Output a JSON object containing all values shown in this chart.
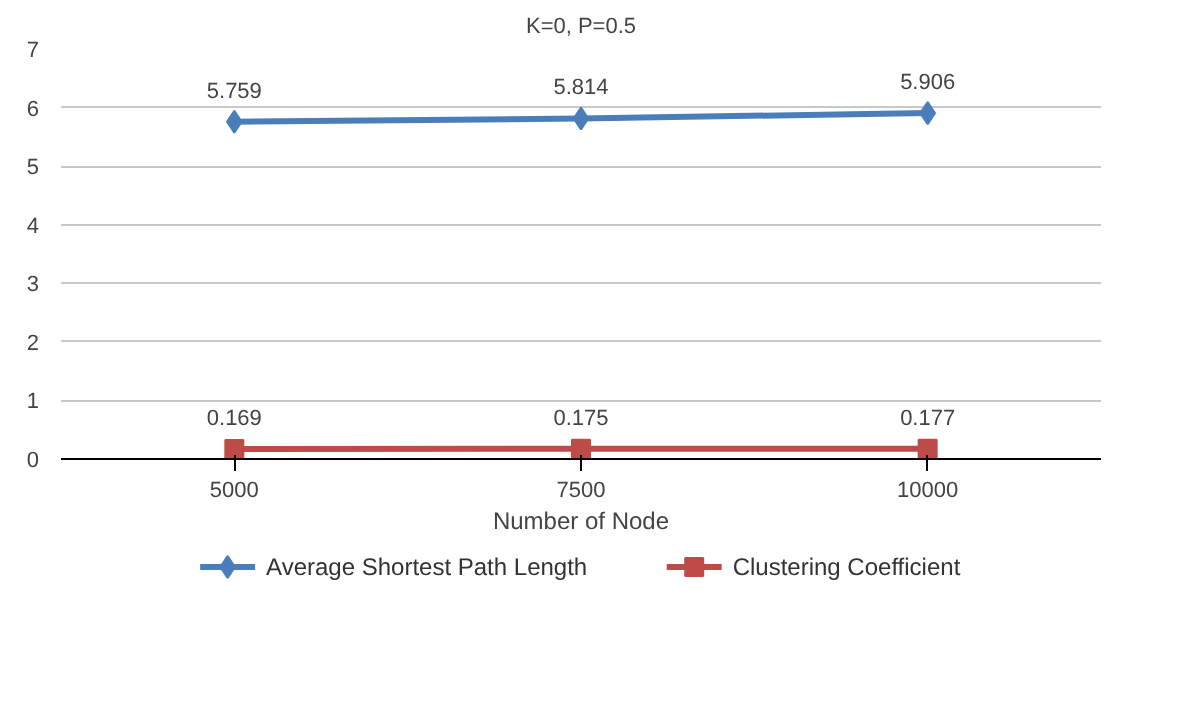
{
  "chart_data": {
    "type": "line",
    "title": "K=0, P=0.5",
    "xlabel": "Number of Node",
    "categories": [
      "5000",
      "7500",
      "10000"
    ],
    "series": [
      {
        "name": "Average Shortest Path Length",
        "color": "#4a7ebb",
        "values": [
          5.759,
          5.814,
          5.906
        ],
        "marker": "diamond"
      },
      {
        "name": "Clustering Coefficient",
        "color": "#be4b48",
        "values": [
          0.169,
          0.175,
          0.177
        ],
        "marker": "square"
      }
    ],
    "ylim": [
      0,
      7
    ],
    "yticks": [
      0,
      1,
      2,
      3,
      4,
      5,
      6,
      7
    ],
    "grid": "y",
    "legend": "bottom",
    "data_labels": true,
    "line_style": "solid"
  }
}
